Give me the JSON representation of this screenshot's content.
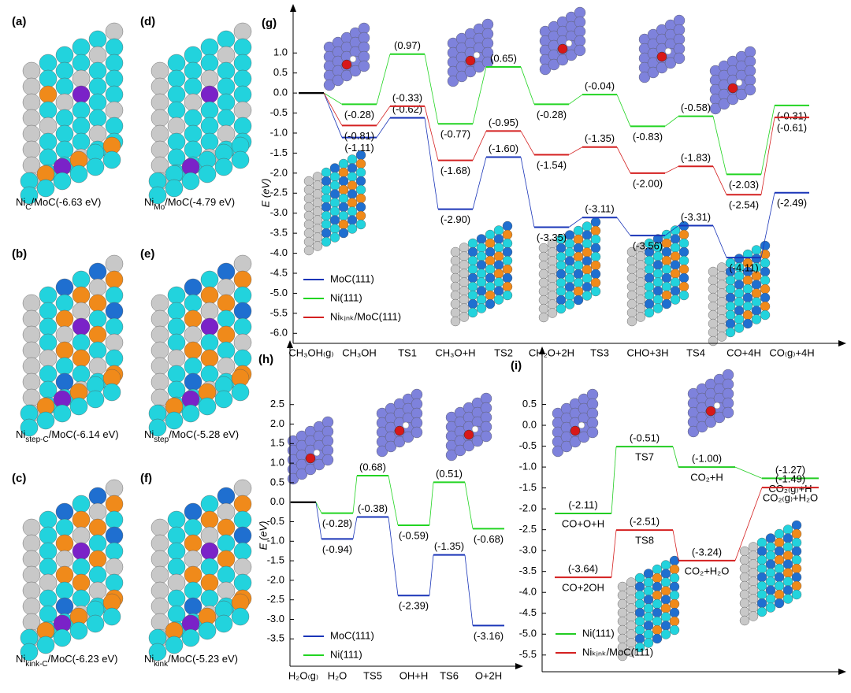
{
  "panels": [
    {
      "label": "(a)",
      "base": "Ni",
      "sub": "C",
      "rest": "/MoC(-6.63 eV)"
    },
    {
      "label": "(d)",
      "base": "Ni",
      "sub": "Mo",
      "rest": "/MoC(-4.79 eV)"
    },
    {
      "label": "(b)",
      "base": "Ni",
      "sub": "step-C",
      "rest": "/MoC(-6.14 eV)"
    },
    {
      "label": "(e)",
      "base": "Ni",
      "sub": "step",
      "rest": "/MoC(-5.28 eV)"
    },
    {
      "label": "(c)",
      "base": "Ni",
      "sub": "kink-C",
      "rest": "/MoC(-6.23 eV)"
    },
    {
      "label": "(f)",
      "base": "Ni",
      "sub": "kink",
      "rest": "/MoC(-5.23 eV)"
    }
  ],
  "chart_data": [
    {
      "panel": "(g)",
      "type": "energy_profile",
      "ylabel": "E (eV)",
      "categories": [
        "CH₃OH₍g₎",
        "CH₃OH",
        "TS1",
        "CH₃O+H",
        "TS2",
        "CH₂O+2H",
        "TS3",
        "CHO+3H",
        "TS4",
        "CO+4H",
        "CO₍g₎+4H"
      ],
      "series": [
        {
          "name": "MoC(111)",
          "color": "#1a35b8",
          "values": [
            0,
            -1.11,
            -0.62,
            -2.9,
            -1.6,
            -3.35,
            -3.11,
            -3.56,
            -3.31,
            -4.11,
            -2.49
          ],
          "value_labels": [
            null,
            "(-1.11)",
            "(-0.62)",
            "(-2.90)",
            "(-1.60)",
            "(-3.35)",
            "(-3.11)",
            "(-3.56)",
            "(-3.31)",
            "(-4.11)",
            "(-2.49)"
          ]
        },
        {
          "name": "Ni(111)",
          "color": "#22d422",
          "values": [
            0,
            -0.28,
            0.97,
            -0.77,
            0.65,
            -0.28,
            -0.04,
            -0.83,
            -0.58,
            -2.03,
            -0.31
          ],
          "value_labels": [
            null,
            "(-0.28)",
            "(0.97)",
            "(-0.77)",
            "(0.65)",
            "(-0.28)",
            "(-0.04)",
            "(-0.83)",
            "(-0.58)",
            "(-2.03)",
            "(-0.31)"
          ]
        },
        {
          "name": "Niₖᵢₙₖ/MoC(111)",
          "color": "#d42020",
          "values": [
            0,
            -0.81,
            -0.33,
            -1.68,
            -0.95,
            -1.54,
            -1.35,
            -2.0,
            -1.83,
            -2.54,
            -0.61
          ],
          "value_labels": [
            null,
            "(-0.81)",
            "(-0.33)",
            "(-1.68)",
            "(-0.95)",
            "(-1.54)",
            "(-1.35)",
            "(-2.00)",
            "(-1.83)",
            "(-2.54)",
            "(-0.61)"
          ]
        }
      ],
      "ylim": [
        -6.25,
        1.3
      ],
      "yticks": [
        {
          "value": 1,
          "label": "1.0"
        },
        0.5,
        {
          "value": 0,
          "label": "0.0"
        },
        -0.5,
        {
          "value": -1,
          "label": "-1.0"
        },
        -1.5,
        {
          "value": -2,
          "label": "-2.0"
        },
        -2.5,
        {
          "value": -3,
          "label": "-3.0"
        },
        -3.5,
        {
          "value": -4,
          "label": "-4.0"
        },
        -4.5,
        {
          "value": -5,
          "label": "-5.0"
        },
        -5.5,
        {
          "value": -6,
          "label": "-6.0"
        }
      ],
      "legend": "lower left"
    },
    {
      "panel": "(h)",
      "type": "energy_profile",
      "ylabel": "E (eV)",
      "categories": [
        "H₂O₍g₎",
        "H₂O",
        "TS5",
        "OH+H",
        "TS6",
        "O+2H"
      ],
      "series": [
        {
          "name": "MoC(111)",
          "color": "#1a35b8",
          "values": [
            0,
            -0.94,
            -0.38,
            -2.39,
            -1.35,
            -3.16
          ],
          "value_labels": [
            null,
            "(-0.94)",
            "(-0.38)",
            "(-2.39)",
            "(-1.35)",
            "(-3.16)"
          ]
        },
        {
          "name": "Ni(111)",
          "color": "#22d422",
          "values": [
            0,
            -0.28,
            0.68,
            -0.59,
            0.51,
            -0.68
          ],
          "value_labels": [
            null,
            "(-0.28)",
            "(0.68)",
            "(-0.59)",
            "(0.51)",
            "(-0.68)"
          ]
        }
      ],
      "ylim": [
        -4.2,
        3.2
      ],
      "yticks": [
        2.5,
        {
          "value": 2,
          "label": "2.0"
        },
        1.5,
        {
          "value": 1,
          "label": "1.0"
        },
        0.5,
        {
          "value": 0,
          "label": "0.0"
        },
        -0.5,
        {
          "value": -1,
          "label": "-1.0"
        },
        -1.5,
        {
          "value": -2,
          "label": "-2.0"
        },
        -2.5,
        {
          "value": -3,
          "label": "-3.0"
        },
        -3.5
      ],
      "legend": "lower left"
    },
    {
      "panel": "(i)",
      "type": "energy_paths",
      "series": [
        {
          "name": "Ni(111)",
          "color": "#22cc22",
          "states": [
            "CO+O+H",
            "TS7",
            "CO₂+H",
            "CO₂₍g₎+H"
          ],
          "values": [
            -2.11,
            -0.51,
            -1.0,
            -1.27
          ],
          "value_labels": [
            "(-2.11)",
            "(-0.51)",
            "(-1.00)",
            "(-1.27)"
          ]
        },
        {
          "name": "Niₖᵢₙₖ/MoC(111)",
          "color": "#d42020",
          "states": [
            "CO+2OH",
            "TS8",
            "CO₂+H₂O",
            "CO₂₍g₎+H₂O"
          ],
          "values": [
            -3.64,
            -2.51,
            -3.24,
            -1.49
          ],
          "value_labels": [
            "(-3.64)",
            "(-2.51)",
            "(-3.24)",
            "(-1.49)"
          ]
        }
      ],
      "ylim": [
        -5.9,
        1.0
      ],
      "yticks": [
        0.5,
        {
          "value": 0,
          "label": "0.0"
        },
        -0.5,
        {
          "value": -1,
          "label": "-1.0"
        },
        -1.5,
        {
          "value": -2,
          "label": "-2.0"
        },
        -2.5,
        {
          "value": -3,
          "label": "-3.0"
        },
        -3.5,
        {
          "value": -4,
          "label": "-4.0"
        },
        -4.5,
        {
          "value": -5,
          "label": "-5.0"
        },
        -5.5
      ],
      "legend": "lower left"
    }
  ]
}
